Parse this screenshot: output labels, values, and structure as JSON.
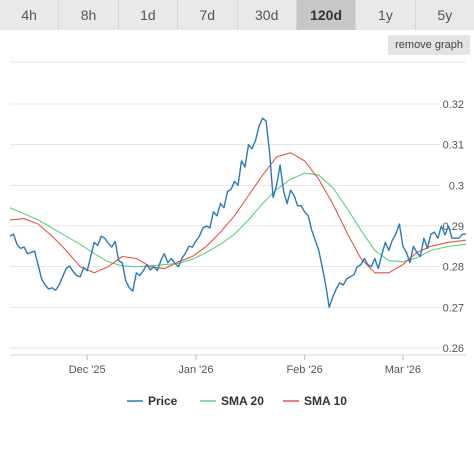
{
  "tabs": [
    {
      "label": "4h",
      "active": false
    },
    {
      "label": "8h",
      "active": false
    },
    {
      "label": "1d",
      "active": false
    },
    {
      "label": "7d",
      "active": false
    },
    {
      "label": "30d",
      "active": false
    },
    {
      "label": "120d",
      "active": true
    },
    {
      "label": "1y",
      "active": false
    },
    {
      "label": "5y",
      "active": false
    }
  ],
  "remove_graph_label": "remove graph",
  "colors": {
    "price": "#2b7ab5",
    "sma20": "#5fcf80",
    "sma10": "#e8534a",
    "grid": "#e4e4e4"
  },
  "chart_data": {
    "type": "line",
    "ylim": [
      0.258,
      0.323
    ],
    "y_ticks": [
      "0.32",
      "0.31",
      "0.3",
      "0.29",
      "0.28",
      "0.27",
      "0.26"
    ],
    "y_tick_values": [
      0.32,
      0.31,
      0.3,
      0.29,
      0.28,
      0.27,
      0.26
    ],
    "x_ticks": [
      "Dec '25",
      "Jan '26",
      "Feb '26",
      "Mar '26"
    ],
    "x_tick_days": [
      22,
      53,
      84,
      112
    ],
    "x_range_days": [
      0,
      120
    ],
    "grid": true,
    "legend_position": "bottom",
    "series": [
      {
        "name": "Price",
        "color_key": "price",
        "points": [
          [
            0,
            0.2875
          ],
          [
            1,
            0.288
          ],
          [
            2,
            0.2855
          ],
          [
            3,
            0.2845
          ],
          [
            4,
            0.2848
          ],
          [
            5,
            0.2832
          ],
          [
            6,
            0.2835
          ],
          [
            7,
            0.2838
          ],
          [
            8,
            0.2805
          ],
          [
            9,
            0.277
          ],
          [
            10,
            0.2755
          ],
          [
            11,
            0.2745
          ],
          [
            12,
            0.2748
          ],
          [
            13,
            0.2742
          ],
          [
            14,
            0.2755
          ],
          [
            15,
            0.2775
          ],
          [
            16,
            0.2795
          ],
          [
            17,
            0.2802
          ],
          [
            18,
            0.2788
          ],
          [
            19,
            0.2778
          ],
          [
            20,
            0.2775
          ],
          [
            21,
            0.2798
          ],
          [
            22,
            0.279
          ],
          [
            23,
            0.2825
          ],
          [
            24,
            0.286
          ],
          [
            25,
            0.2852
          ],
          [
            26,
            0.2875
          ],
          [
            27,
            0.287
          ],
          [
            28,
            0.2858
          ],
          [
            29,
            0.2848
          ],
          [
            30,
            0.2862
          ],
          [
            31,
            0.2815
          ],
          [
            32,
            0.281
          ],
          [
            33,
            0.2765
          ],
          [
            34,
            0.2748
          ],
          [
            35,
            0.274
          ],
          [
            36,
            0.2785
          ],
          [
            37,
            0.2778
          ],
          [
            38,
            0.279
          ],
          [
            39,
            0.2805
          ],
          [
            40,
            0.2792
          ],
          [
            41,
            0.28
          ],
          [
            42,
            0.279
          ],
          [
            43,
            0.2815
          ],
          [
            44,
            0.2832
          ],
          [
            45,
            0.281
          ],
          [
            46,
            0.282
          ],
          [
            47,
            0.2808
          ],
          [
            48,
            0.28
          ],
          [
            49,
            0.282
          ],
          [
            50,
            0.2833
          ],
          [
            51,
            0.285
          ],
          [
            52,
            0.2848
          ],
          [
            53,
            0.2863
          ],
          [
            54,
            0.2875
          ],
          [
            55,
            0.2895
          ],
          [
            56,
            0.29
          ],
          [
            57,
            0.2895
          ],
          [
            58,
            0.2935
          ],
          [
            59,
            0.2925
          ],
          [
            60,
            0.2955
          ],
          [
            61,
            0.2945
          ],
          [
            62,
            0.2985
          ],
          [
            63,
            0.299
          ],
          [
            64,
            0.301
          ],
          [
            65,
            0.3
          ],
          [
            66,
            0.306
          ],
          [
            67,
            0.3045
          ],
          [
            68,
            0.31
          ],
          [
            69,
            0.309
          ],
          [
            70,
            0.311
          ],
          [
            71,
            0.3145
          ],
          [
            72,
            0.3165
          ],
          [
            73,
            0.3158
          ],
          [
            74,
            0.308
          ],
          [
            75,
            0.297
          ],
          [
            76,
            0.3
          ],
          [
            77,
            0.305
          ],
          [
            78,
            0.2985
          ],
          [
            79,
            0.2955
          ],
          [
            80,
            0.2988
          ],
          [
            81,
            0.2975
          ],
          [
            82,
            0.295
          ],
          [
            83,
            0.295
          ],
          [
            84,
            0.2935
          ],
          [
            85,
            0.2925
          ],
          [
            86,
            0.289
          ],
          [
            87,
            0.2865
          ],
          [
            88,
            0.284
          ],
          [
            89,
            0.28
          ],
          [
            90,
            0.2755
          ],
          [
            91,
            0.27
          ],
          [
            92,
            0.2725
          ],
          [
            93,
            0.2745
          ],
          [
            94,
            0.276
          ],
          [
            95,
            0.2755
          ],
          [
            96,
            0.277
          ],
          [
            97,
            0.2775
          ],
          [
            98,
            0.278
          ],
          [
            99,
            0.28
          ],
          [
            100,
            0.2805
          ],
          [
            101,
            0.282
          ],
          [
            102,
            0.2805
          ],
          [
            103,
            0.28
          ],
          [
            104,
            0.282
          ],
          [
            105,
            0.2795
          ],
          [
            106,
            0.283
          ],
          [
            107,
            0.286
          ],
          [
            108,
            0.284
          ],
          [
            109,
            0.2865
          ],
          [
            110,
            0.288
          ],
          [
            111,
            0.2905
          ],
          [
            112,
            0.285
          ],
          [
            113,
            0.2835
          ],
          [
            114,
            0.281
          ],
          [
            115,
            0.285
          ],
          [
            116,
            0.2835
          ],
          [
            117,
            0.2825
          ],
          [
            118,
            0.287
          ],
          [
            119,
            0.2845
          ],
          [
            120,
            0.288
          ],
          [
            121,
            0.2885
          ],
          [
            122,
            0.287
          ],
          [
            123,
            0.29
          ],
          [
            124,
            0.2878
          ],
          [
            125,
            0.29
          ],
          [
            126,
            0.287
          ],
          [
            127,
            0.287
          ],
          [
            128,
            0.287
          ],
          [
            129,
            0.288
          ],
          [
            130,
            0.288
          ]
        ]
      },
      {
        "name": "SMA 20",
        "color_key": "sma20",
        "points": [
          [
            0,
            0.2945
          ],
          [
            4,
            0.293
          ],
          [
            8,
            0.2915
          ],
          [
            12,
            0.2895
          ],
          [
            16,
            0.2875
          ],
          [
            20,
            0.2855
          ],
          [
            24,
            0.2832
          ],
          [
            28,
            0.2812
          ],
          [
            32,
            0.2802
          ],
          [
            36,
            0.28
          ],
          [
            40,
            0.2802
          ],
          [
            44,
            0.2805
          ],
          [
            48,
            0.2808
          ],
          [
            52,
            0.2818
          ],
          [
            56,
            0.2835
          ],
          [
            60,
            0.2855
          ],
          [
            64,
            0.288
          ],
          [
            68,
            0.2915
          ],
          [
            72,
            0.2955
          ],
          [
            76,
            0.299
          ],
          [
            80,
            0.3015
          ],
          [
            84,
            0.303
          ],
          [
            88,
            0.3025
          ],
          [
            92,
            0.2995
          ],
          [
            96,
            0.2945
          ],
          [
            100,
            0.289
          ],
          [
            104,
            0.284
          ],
          [
            108,
            0.2815
          ],
          [
            112,
            0.2812
          ],
          [
            116,
            0.2822
          ],
          [
            120,
            0.284
          ],
          [
            125,
            0.285
          ],
          [
            130,
            0.2855
          ]
        ]
      },
      {
        "name": "SMA 10",
        "color_key": "sma10",
        "points": [
          [
            0,
            0.2915
          ],
          [
            4,
            0.2918
          ],
          [
            8,
            0.2905
          ],
          [
            12,
            0.2875
          ],
          [
            16,
            0.284
          ],
          [
            20,
            0.28
          ],
          [
            24,
            0.2785
          ],
          [
            28,
            0.28
          ],
          [
            32,
            0.2825
          ],
          [
            36,
            0.282
          ],
          [
            40,
            0.28
          ],
          [
            44,
            0.2795
          ],
          [
            48,
            0.2812
          ],
          [
            52,
            0.2825
          ],
          [
            56,
            0.285
          ],
          [
            60,
            0.2885
          ],
          [
            64,
            0.2925
          ],
          [
            68,
            0.2975
          ],
          [
            72,
            0.3025
          ],
          [
            76,
            0.307
          ],
          [
            80,
            0.308
          ],
          [
            84,
            0.306
          ],
          [
            88,
            0.3015
          ],
          [
            92,
            0.2955
          ],
          [
            96,
            0.2885
          ],
          [
            100,
            0.282
          ],
          [
            104,
            0.2785
          ],
          [
            108,
            0.2785
          ],
          [
            112,
            0.2805
          ],
          [
            116,
            0.2835
          ],
          [
            120,
            0.285
          ],
          [
            125,
            0.286
          ],
          [
            130,
            0.2865
          ]
        ]
      }
    ]
  }
}
